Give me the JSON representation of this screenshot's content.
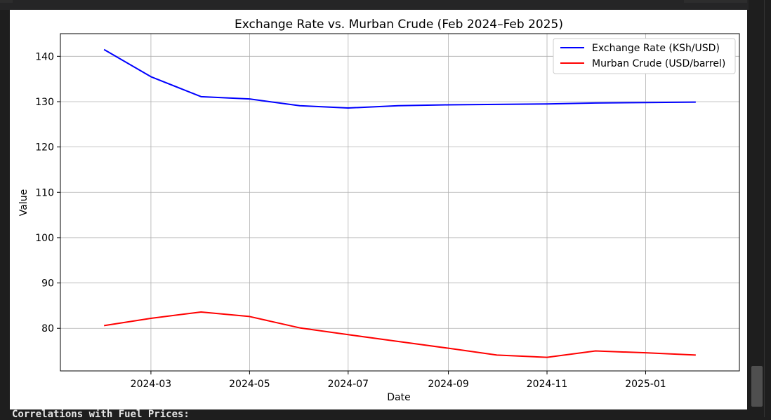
{
  "chart_data": {
    "type": "line",
    "title": "Exchange Rate vs. Murban Crude (Feb 2024–Feb 2025)",
    "xlabel": "Date",
    "ylabel": "Value",
    "x": [
      "2024-02-01",
      "2024-03-01",
      "2024-04-01",
      "2024-05-01",
      "2024-06-01",
      "2024-07-01",
      "2024-08-01",
      "2024-09-01",
      "2024-10-01",
      "2024-11-01",
      "2024-12-01",
      "2025-01-01",
      "2025-02-01"
    ],
    "x_ticks": [
      "2024-03",
      "2024-05",
      "2024-07",
      "2024-09",
      "2024-11",
      "2025-01"
    ],
    "x_tick_dates": [
      "2024-03-01",
      "2024-05-01",
      "2024-07-01",
      "2024-09-01",
      "2024-11-01",
      "2025-01-01"
    ],
    "xlim": [
      "2024-01-05",
      "2025-02-28"
    ],
    "y_ticks": [
      80,
      90,
      100,
      110,
      120,
      130,
      140
    ],
    "ylim": [
      70.6,
      145
    ],
    "grid": true,
    "legend_position": "top-right",
    "series": [
      {
        "name": "Exchange Rate (KSh/USD)",
        "color": "#0000ff",
        "values": [
          141.5,
          135.5,
          131.1,
          130.6,
          129.1,
          128.6,
          129.1,
          129.3,
          129.4,
          129.5,
          129.7,
          129.8,
          129.9
        ]
      },
      {
        "name": "Murban Crude (USD/barrel)",
        "color": "#ff0000",
        "values": [
          80.6,
          82.2,
          83.6,
          82.6,
          80.1,
          78.6,
          77.1,
          75.6,
          74.1,
          73.6,
          75.0,
          74.6,
          74.1
        ]
      }
    ]
  },
  "console": {
    "line1": "Correlations with Fuel Prices:"
  }
}
